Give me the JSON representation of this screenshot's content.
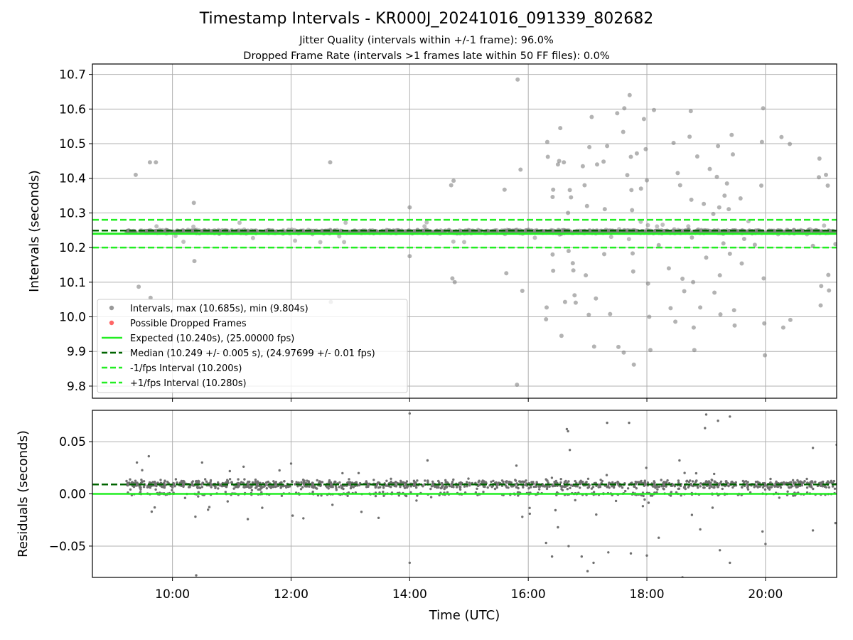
{
  "chart_data": [
    {
      "type": "scatter",
      "title": "Timestamp Intervals - KR000J_20241016_091339_802682",
      "subtitle_lines": [
        "Jitter Quality (intervals within +/-1 frame): 96.0%",
        "Dropped Frame Rate (intervals >1 frames late within 50 FF files): 0.0%"
      ],
      "ylabel": "Intervals (seconds)",
      "xlim_hours": [
        8.65,
        21.2
      ],
      "ylim": [
        9.765,
        10.73
      ],
      "yticks": [
        9.8,
        9.9,
        10.0,
        10.1,
        10.2,
        10.3,
        10.4,
        10.5,
        10.6,
        10.7
      ],
      "ytick_labels": [
        "9.8",
        "9.9",
        "10.0",
        "10.1",
        "10.2",
        "10.3",
        "10.4",
        "10.5",
        "10.6",
        "10.7"
      ],
      "grid": true,
      "legend_position": "lower-left",
      "colors": {
        "intervals": "#808080",
        "dropped": "#ff4d4d",
        "expected": "#22ee22",
        "median": "#006400",
        "bounds": "#22ee22"
      },
      "legend": [
        {
          "label": "Intervals, max (10.685s), min (9.804s)",
          "marker": "dot",
          "color": "#999999"
        },
        {
          "label": "Possible Dropped Frames",
          "marker": "dot",
          "color": "#ff6666"
        },
        {
          "label": "Expected (10.240s), (25.00000 fps)",
          "marker": "line-solid",
          "color": "#22ee22"
        },
        {
          "label": "Median (10.249 +/- 0.005 s), (24.97699 +/- 0.01 fps)",
          "marker": "line-dashed",
          "color": "#006400"
        },
        {
          "label": "-1/fps Interval (10.200s)",
          "marker": "line-dashed",
          "color": "#22ee22"
        },
        {
          "label": "+1/fps Interval (10.280s)",
          "marker": "line-dashed",
          "color": "#22ee22"
        }
      ],
      "reference_lines": {
        "expected": 10.24,
        "median": 10.249,
        "lower": 10.2,
        "upper": 10.28
      },
      "dense_band": {
        "x_range_hours": [
          9.22,
          21.2
        ],
        "center": 10.246,
        "half_width": 0.008
      },
      "outliers": [
        [
          9.38,
          10.41
        ],
        [
          9.62,
          10.446
        ],
        [
          9.72,
          10.446
        ],
        [
          9.43,
          10.087
        ],
        [
          9.63,
          10.055
        ],
        [
          10.36,
          10.329
        ],
        [
          10.37,
          10.161
        ],
        [
          12.66,
          10.446
        ],
        [
          12.67,
          10.043
        ],
        [
          14.0,
          10.316
        ],
        [
          14.0,
          10.175
        ],
        [
          14.7,
          10.38
        ],
        [
          14.74,
          10.393
        ],
        [
          14.72,
          10.111
        ],
        [
          14.76,
          10.1
        ],
        [
          15.6,
          10.367
        ],
        [
          15.63,
          10.126
        ],
        [
          15.82,
          10.685
        ],
        [
          15.87,
          10.425
        ],
        [
          15.9,
          10.075
        ],
        [
          15.81,
          9.804
        ],
        [
          16.32,
          10.505
        ],
        [
          16.33,
          10.462
        ],
        [
          16.31,
          10.027
        ],
        [
          16.3,
          9.993
        ],
        [
          16.42,
          10.367
        ],
        [
          16.41,
          10.346
        ],
        [
          16.41,
          10.18
        ],
        [
          16.42,
          10.133
        ],
        [
          16.5,
          10.44
        ],
        [
          16.52,
          10.45
        ],
        [
          16.54,
          10.545
        ],
        [
          16.56,
          9.945
        ],
        [
          16.6,
          10.446
        ],
        [
          16.62,
          10.043
        ],
        [
          16.67,
          10.3
        ],
        [
          16.68,
          10.19
        ],
        [
          16.7,
          10.366
        ],
        [
          16.72,
          10.345
        ],
        [
          16.75,
          10.155
        ],
        [
          16.76,
          10.134
        ],
        [
          16.78,
          10.062
        ],
        [
          16.8,
          10.041
        ],
        [
          16.92,
          10.435
        ],
        [
          16.95,
          10.38
        ],
        [
          16.97,
          10.12
        ],
        [
          16.99,
          10.32
        ],
        [
          17.03,
          10.49
        ],
        [
          17.02,
          10.006
        ],
        [
          17.07,
          10.577
        ],
        [
          17.11,
          9.914
        ],
        [
          17.16,
          10.44
        ],
        [
          17.14,
          10.053
        ],
        [
          17.27,
          10.448
        ],
        [
          17.29,
          10.311
        ],
        [
          17.28,
          10.181
        ],
        [
          17.33,
          10.493
        ],
        [
          17.38,
          10.008
        ],
        [
          17.5,
          10.588
        ],
        [
          17.52,
          9.913
        ],
        [
          17.6,
          10.534
        ],
        [
          17.62,
          10.602
        ],
        [
          17.61,
          9.897
        ],
        [
          17.67,
          10.409
        ],
        [
          17.71,
          10.64
        ],
        [
          17.73,
          10.462
        ],
        [
          17.74,
          10.366
        ],
        [
          17.75,
          10.308
        ],
        [
          17.76,
          10.183
        ],
        [
          17.77,
          10.131
        ],
        [
          17.78,
          9.862
        ],
        [
          17.83,
          10.472
        ],
        [
          17.9,
          10.37
        ],
        [
          17.95,
          10.571
        ],
        [
          17.98,
          10.484
        ],
        [
          18.0,
          10.394
        ],
        [
          18.02,
          10.096
        ],
        [
          18.04,
          10.0
        ],
        [
          18.06,
          9.904
        ],
        [
          18.12,
          10.597
        ],
        [
          18.2,
          10.207
        ],
        [
          18.37,
          10.14
        ],
        [
          18.4,
          10.025
        ],
        [
          18.45,
          10.502
        ],
        [
          18.48,
          9.986
        ],
        [
          18.52,
          10.415
        ],
        [
          18.56,
          10.38
        ],
        [
          18.6,
          10.11
        ],
        [
          18.63,
          10.074
        ],
        [
          18.72,
          10.52
        ],
        [
          18.74,
          10.594
        ],
        [
          18.75,
          10.338
        ],
        [
          18.76,
          10.229
        ],
        [
          18.78,
          10.1
        ],
        [
          18.79,
          9.969
        ],
        [
          18.8,
          9.904
        ],
        [
          18.85,
          10.463
        ],
        [
          18.9,
          10.027
        ],
        [
          18.96,
          10.326
        ],
        [
          19.0,
          10.171
        ],
        [
          19.06,
          10.427
        ],
        [
          19.12,
          10.297
        ],
        [
          19.14,
          10.07
        ],
        [
          19.18,
          10.404
        ],
        [
          19.2,
          10.493
        ],
        [
          19.22,
          10.316
        ],
        [
          19.23,
          10.12
        ],
        [
          19.24,
          10.007
        ],
        [
          19.29,
          10.212
        ],
        [
          19.31,
          10.35
        ],
        [
          19.35,
          10.385
        ],
        [
          19.38,
          10.311
        ],
        [
          19.4,
          10.182
        ],
        [
          19.43,
          10.525
        ],
        [
          19.45,
          10.469
        ],
        [
          19.47,
          10.019
        ],
        [
          19.48,
          9.975
        ],
        [
          19.58,
          10.342
        ],
        [
          19.6,
          10.154
        ],
        [
          19.64,
          10.225
        ],
        [
          19.82,
          10.208
        ],
        [
          19.93,
          10.379
        ],
        [
          19.94,
          10.505
        ],
        [
          19.96,
          10.602
        ],
        [
          19.97,
          10.111
        ],
        [
          19.98,
          9.981
        ],
        [
          19.99,
          9.889
        ],
        [
          20.27,
          10.519
        ],
        [
          20.3,
          9.969
        ],
        [
          20.41,
          10.499
        ],
        [
          20.42,
          9.991
        ],
        [
          20.8,
          10.205
        ],
        [
          20.9,
          10.403
        ],
        [
          20.91,
          10.457
        ],
        [
          20.93,
          10.033
        ],
        [
          20.94,
          10.089
        ],
        [
          21.02,
          10.41
        ],
        [
          21.05,
          10.379
        ],
        [
          21.06,
          10.121
        ],
        [
          21.07,
          10.076
        ],
        [
          21.18,
          10.21
        ]
      ]
    },
    {
      "type": "scatter",
      "ylabel": "Residuals (seconds)",
      "xlabel": "Time (UTC)",
      "xlim_hours": [
        8.65,
        21.2
      ],
      "ylim": [
        -0.08,
        0.08
      ],
      "yticks": [
        -0.05,
        0.0,
        0.05
      ],
      "ytick_labels": [
        "−0.05",
        "0.00",
        "0.05"
      ],
      "xticks_hours": [
        10,
        12,
        14,
        16,
        18,
        20
      ],
      "xtick_labels": [
        "10:00",
        "12:00",
        "14:00",
        "16:00",
        "18:00",
        "20:00"
      ],
      "grid": true,
      "colors": {
        "points": "#707070",
        "expected": "#22ee22",
        "median": "#006400"
      },
      "reference_lines": {
        "expected": 0.0,
        "median": 0.009
      },
      "outliers": [
        [
          9.6,
          0.036
        ],
        [
          9.65,
          -0.017
        ],
        [
          9.7,
          -0.013
        ],
        [
          9.4,
          0.03
        ],
        [
          10.4,
          -0.078
        ],
        [
          10.5,
          0.03
        ],
        [
          11.2,
          0.026
        ],
        [
          12.0,
          0.029
        ],
        [
          14.0,
          0.077
        ],
        [
          14.0,
          -0.066
        ],
        [
          14.3,
          0.032
        ],
        [
          15.8,
          0.027
        ],
        [
          15.9,
          -0.022
        ],
        [
          16.3,
          -0.047
        ],
        [
          16.4,
          -0.06
        ],
        [
          16.5,
          -0.032
        ],
        [
          16.65,
          0.062
        ],
        [
          16.67,
          0.06
        ],
        [
          16.7,
          0.042
        ],
        [
          16.68,
          -0.05
        ],
        [
          16.9,
          -0.06
        ],
        [
          17.0,
          -0.074
        ],
        [
          17.1,
          -0.066
        ],
        [
          17.35,
          -0.056
        ],
        [
          17.33,
          0.068
        ],
        [
          17.7,
          0.068
        ],
        [
          17.73,
          -0.057
        ],
        [
          18.0,
          -0.059
        ],
        [
          18.2,
          -0.042
        ],
        [
          18.55,
          0.032
        ],
        [
          18.6,
          -0.08
        ],
        [
          18.9,
          -0.034
        ],
        [
          18.98,
          0.063
        ],
        [
          19.0,
          0.076
        ],
        [
          19.2,
          0.07
        ],
        [
          19.4,
          0.074
        ],
        [
          19.23,
          -0.054
        ],
        [
          19.4,
          -0.066
        ],
        [
          19.95,
          -0.036
        ],
        [
          20.0,
          -0.048
        ],
        [
          20.8,
          0.044
        ],
        [
          20.8,
          -0.035
        ],
        [
          21.2,
          0.047
        ],
        [
          21.18,
          -0.028
        ]
      ]
    }
  ]
}
